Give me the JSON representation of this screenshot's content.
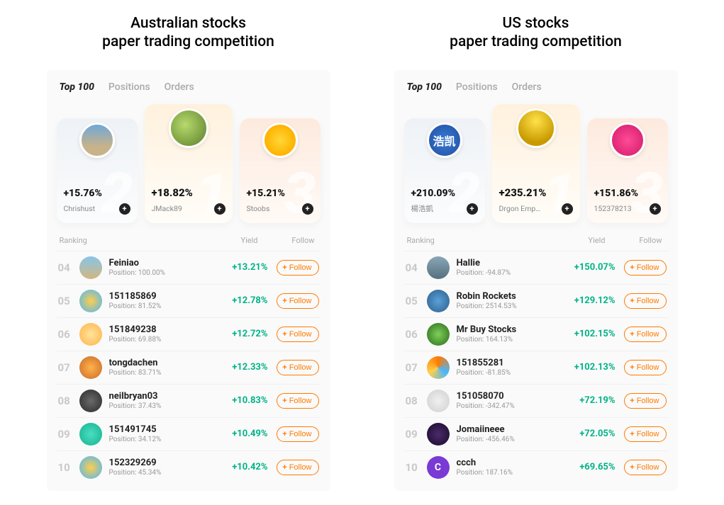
{
  "follow_label": "Follow",
  "list_headers": {
    "ranking": "Ranking",
    "yield": "Yield",
    "follow": "Follow"
  },
  "tabs": {
    "top100": "Top 100",
    "positions": "Positions",
    "orders": "Orders"
  },
  "position_prefix": "Position:",
  "panels": [
    {
      "title": "Australian stocks\npaper trading competition",
      "podium": {
        "first": {
          "gain": "+18.82%",
          "name": "JMack89",
          "avatar_bg": "radial-gradient(circle at 40% 40%, #b7d96d, #5a7e2a)"
        },
        "second": {
          "gain": "+15.76%",
          "name": "Chrishust",
          "avatar_bg": "linear-gradient(180deg,#6fa8d8 0%,#c8b28a 70%)"
        },
        "third": {
          "gain": "+15.21%",
          "name": "Stoobs",
          "avatar_bg": "radial-gradient(circle,#ffd736 0%,#ffb200 70%)"
        }
      },
      "rows": [
        {
          "rank": "04",
          "name": "Feiniao",
          "position": "100.00%",
          "yield": "+13.21%",
          "avatar_bg": "linear-gradient(180deg,#89c5e8,#d2b77f)"
        },
        {
          "rank": "05",
          "name": "151185869",
          "position": "81.52%",
          "yield": "+12.78%",
          "avatar_bg": "radial-gradient(circle,#ffcf4a,#47b6ff)"
        },
        {
          "rank": "06",
          "name": "151849238",
          "position": "69.88%",
          "yield": "+12.72%",
          "avatar_bg": "radial-gradient(circle,#ffe49a,#ffb24a)"
        },
        {
          "rank": "07",
          "name": "tongdachen",
          "position": "83.71%",
          "yield": "+12.33%",
          "avatar_bg": "radial-gradient(circle,#ffb24a,#c96a2a)"
        },
        {
          "rank": "08",
          "name": "neilbryan03",
          "position": "37.43%",
          "yield": "+10.83%",
          "avatar_bg": "radial-gradient(circle,#6a6a6a,#2a2a2a)"
        },
        {
          "rank": "09",
          "name": "151491745",
          "position": "34.12%",
          "yield": "+10.49%",
          "avatar_bg": "radial-gradient(circle,#4adec1,#12b38f)"
        },
        {
          "rank": "10",
          "name": "152329269",
          "position": "45.34%",
          "yield": "+10.42%",
          "avatar_bg": "radial-gradient(circle,#ffcf4a,#47b6ff)"
        }
      ]
    },
    {
      "title": "US stocks\npaper trading competition",
      "podium": {
        "first": {
          "gain": "+235.21%",
          "name": "Drgon Emp…",
          "avatar_bg": "radial-gradient(circle at 50% 30%, #ffe14a, #c99a00 70%)"
        },
        "second": {
          "gain": "+210.09%",
          "name": "楊浩凱",
          "avatar_bg": "radial-gradient(circle,#3a7bd5,#1f4fa0)",
          "avatar_text": "浩凯"
        },
        "third": {
          "gain": "+151.86%",
          "name": "152378213",
          "avatar_bg": "radial-gradient(circle,#ff4a94,#d11a6a)"
        }
      },
      "rows": [
        {
          "rank": "04",
          "name": "Hallie",
          "position": "-94.87%",
          "yield": "+150.07%",
          "avatar_bg": "linear-gradient(180deg,#8aa7b8,#55707e)"
        },
        {
          "rank": "05",
          "name": "Robin Rockets",
          "position": "2514.53%",
          "yield": "+129.12%",
          "avatar_bg": "radial-gradient(circle,#5aa0d8,#2d5f8a)"
        },
        {
          "rank": "06",
          "name": "Mr Buy Stocks",
          "position": "164.13%",
          "yield": "+102.15%",
          "avatar_bg": "radial-gradient(circle,#7fcf5a,#2a6a1a)"
        },
        {
          "rank": "07",
          "name": "151855281",
          "position": "-81.85%",
          "yield": "+102.13%",
          "avatar_bg": "conic-gradient(#ff7a00,#47b6ff,#ffcf4a,#ff7a00)"
        },
        {
          "rank": "08",
          "name": "151058070",
          "position": "-342.47%",
          "yield": "+72.19%",
          "avatar_bg": "radial-gradient(circle,#f0f0f0,#cfcfcf)"
        },
        {
          "rank": "09",
          "name": "Jomaiineee",
          "position": "-456.46%",
          "yield": "+72.05%",
          "avatar_bg": "radial-gradient(circle,#4a2a6a,#1a0a2a)"
        },
        {
          "rank": "10",
          "name": "ccch",
          "position": "187.16%",
          "yield": "+69.65%",
          "avatar_bg": "#7a3ad5",
          "avatar_text": "C"
        }
      ]
    }
  ]
}
